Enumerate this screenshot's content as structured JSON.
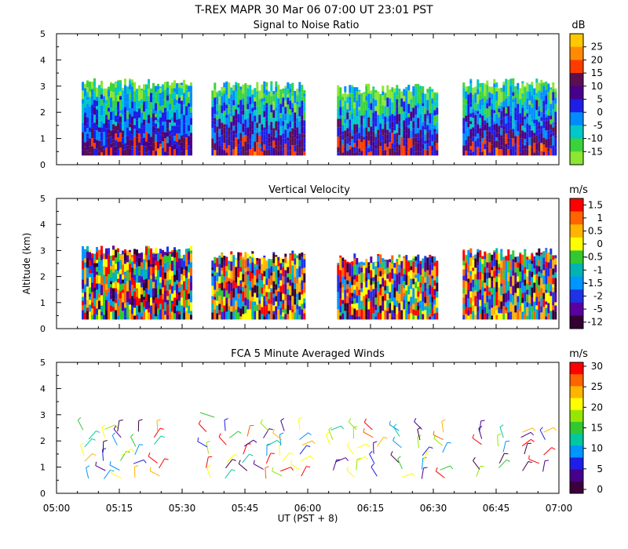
{
  "header": {
    "title_line": "T-REX   MAPR 30 Mar 06   07:00 UT   23:01   PST"
  },
  "x_axis": {
    "label": "UT  (PST + 8)",
    "ticks": [
      "05:00",
      "05:15",
      "05:30",
      "05:45",
      "06:00",
      "06:15",
      "06:30",
      "06:45",
      "07:00"
    ]
  },
  "y_axis": {
    "label": "Altitude (km)",
    "ticks": [
      "0",
      "1",
      "2",
      "3",
      "4",
      "5"
    ]
  },
  "chart_data": [
    {
      "type": "heatmap",
      "title": "Signal to Noise Ratio",
      "units": "dB",
      "colorbar_labels": [
        "25",
        "20",
        "15",
        "10",
        "5",
        "0",
        "-5",
        "-10",
        "-15"
      ],
      "colors": [
        "#ffc800",
        "#ff8c00",
        "#ff3c00",
        "#5a0f50",
        "#46008c",
        "#1e1ee6",
        "#008cff",
        "#00c8c8",
        "#3cd23c",
        "#8ce632"
      ],
      "xlim": [
        0,
        120
      ],
      "ylim": [
        0,
        5
      ],
      "data_segments_minutes": [
        [
          6,
          32
        ],
        [
          37,
          59
        ],
        [
          67,
          91
        ],
        [
          97,
          119
        ]
      ],
      "max_altitude_km": [
        3.1,
        3.0,
        2.9,
        3.1
      ]
    },
    {
      "type": "heatmap",
      "title": "Vertical Velocity",
      "units": "m/s",
      "colorbar_labels": [
        "1.5",
        "1",
        "0.5",
        "0",
        "-0.5",
        "-1",
        "-1.5",
        "-2",
        "-5",
        "-12"
      ],
      "colors": [
        "#ff0000",
        "#ff6400",
        "#ffb400",
        "#ffff00",
        "#32c832",
        "#00b4b4",
        "#0096ff",
        "#1e32e6",
        "#5a00a0",
        "#320032"
      ],
      "xlim": [
        0,
        120
      ],
      "ylim": [
        0,
        5
      ],
      "data_segments_minutes": [
        [
          6,
          32
        ],
        [
          37,
          59
        ],
        [
          67,
          91
        ],
        [
          97,
          119
        ]
      ],
      "max_altitude_km": [
        3.0,
        2.8,
        2.7,
        2.9
      ]
    },
    {
      "type": "scatter",
      "title": "FCA 5 Minute Averaged Winds",
      "units": "m/s",
      "colorbar_labels": [
        "30",
        "25",
        "20",
        "15",
        "10",
        "5",
        "0"
      ],
      "colors": [
        "#ff0000",
        "#ff6400",
        "#ffb400",
        "#ffff00",
        "#96e600",
        "#32c832",
        "#00c8a0",
        "#0096ff",
        "#1e1ee6",
        "#46008c",
        "#3c003c"
      ],
      "xlim": [
        0,
        120
      ],
      "ylim": [
        0,
        5
      ],
      "barb_columns_minutes": [
        7,
        11,
        15,
        19,
        24,
        36,
        41,
        45,
        50,
        54,
        58,
        66,
        71,
        76,
        82,
        87,
        92,
        101,
        106,
        111,
        116
      ],
      "barb_altitudes_km": [
        0.6,
        0.9,
        1.2,
        1.5,
        1.8,
        2.1,
        2.4
      ]
    }
  ]
}
